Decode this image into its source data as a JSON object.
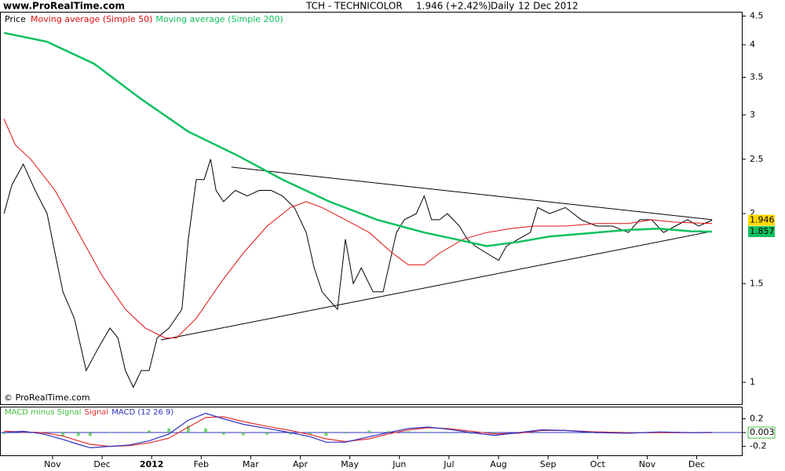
{
  "header": {
    "site": "www.ProRealTime.com",
    "symbol": "TCH - TECHNICOLOR",
    "change": "1.946 (+2.42%)",
    "period": "Daily",
    "date": "12 Dec 2012"
  },
  "chart_data": [
    {
      "type": "line",
      "log_scale": true,
      "copyright": "© ProRealTime.com",
      "legend_prefix": "Price",
      "xlim": [
        -1.06,
        13.91
      ],
      "xticks": [
        {
          "value": 0,
          "label": "Nov"
        },
        {
          "value": 1,
          "label": "Dec"
        },
        {
          "value": 2,
          "label": "2012"
        },
        {
          "value": 3,
          "label": "Feb"
        },
        {
          "value": 4,
          "label": "Mar"
        },
        {
          "value": 5,
          "label": "Apr"
        },
        {
          "value": 6,
          "label": "May"
        },
        {
          "value": 7,
          "label": "Jun"
        },
        {
          "value": 8,
          "label": "Jul"
        },
        {
          "value": 9,
          "label": "Aug"
        },
        {
          "value": 10,
          "label": "Sep"
        },
        {
          "value": 11,
          "label": "Oct"
        },
        {
          "value": 12,
          "label": "Nov"
        },
        {
          "value": 13,
          "label": "Dec"
        }
      ],
      "ylim": [
        0.914,
        4.58
      ],
      "yticks": [
        1,
        1.5,
        2,
        2.5,
        3,
        3.5,
        4,
        4.5
      ],
      "series": [
        {
          "name": "Price",
          "color": "#000000",
          "width": 1,
          "x": [
            -0.98,
            -0.82,
            -0.59,
            -0.35,
            -0.11,
            0.05,
            0.21,
            0.44,
            0.68,
            0.92,
            1.16,
            1.32,
            1.47,
            1.63,
            1.79,
            1.95,
            2.11,
            2.35,
            2.61,
            2.74,
            2.9,
            3.06,
            3.19,
            3.3,
            3.45,
            3.69,
            3.93,
            4.17,
            4.41,
            4.64,
            4.88,
            5.12,
            5.28,
            5.44,
            5.59,
            5.75,
            5.91,
            6.07,
            6.23,
            6.47,
            6.67,
            6.78,
            6.94,
            7.1,
            7.34,
            7.5,
            7.65,
            7.81,
            7.97,
            8.21,
            8.37,
            8.53,
            8.76,
            9.0,
            9.16,
            9.4,
            9.64,
            9.79,
            10.03,
            10.35,
            10.67,
            10.98,
            11.3,
            11.62,
            11.85,
            12.09,
            12.33,
            12.57,
            12.81,
            13.04,
            13.31
          ],
          "values": [
            2.0,
            2.25,
            2.45,
            2.2,
            2.0,
            1.7,
            1.45,
            1.3,
            1.05,
            1.15,
            1.25,
            1.2,
            1.05,
            0.98,
            1.05,
            1.05,
            1.2,
            1.25,
            1.35,
            1.8,
            2.3,
            2.3,
            2.5,
            2.2,
            2.1,
            2.2,
            2.15,
            2.2,
            2.2,
            2.15,
            2.05,
            1.85,
            1.6,
            1.45,
            1.4,
            1.35,
            1.8,
            1.5,
            1.6,
            1.45,
            1.45,
            1.6,
            1.85,
            1.95,
            2.0,
            2.15,
            1.95,
            1.95,
            2.0,
            1.9,
            1.8,
            1.75,
            1.7,
            1.65,
            1.75,
            1.8,
            1.85,
            2.05,
            2.0,
            2.05,
            1.95,
            1.9,
            1.9,
            1.85,
            1.95,
            1.95,
            1.85,
            1.9,
            1.95,
            1.9,
            1.946
          ]
        },
        {
          "name": "Moving average (Simple 50)",
          "color": "#e01010",
          "width": 1,
          "x": [
            -0.98,
            -0.75,
            -0.44,
            0.05,
            0.52,
            1.0,
            1.47,
            1.87,
            2.27,
            2.5,
            2.9,
            3.38,
            3.85,
            4.33,
            4.8,
            5.12,
            5.44,
            5.91,
            6.39,
            6.86,
            7.18,
            7.5,
            7.81,
            8.29,
            8.76,
            9.24,
            9.71,
            10.35,
            10.98,
            11.62,
            12.09,
            12.57,
            13.31
          ],
          "values": [
            2.95,
            2.65,
            2.5,
            2.2,
            1.85,
            1.55,
            1.35,
            1.25,
            1.2,
            1.2,
            1.3,
            1.5,
            1.7,
            1.9,
            2.05,
            2.1,
            2.05,
            1.95,
            1.85,
            1.7,
            1.62,
            1.62,
            1.7,
            1.8,
            1.85,
            1.88,
            1.9,
            1.9,
            1.92,
            1.92,
            1.95,
            1.93,
            1.92
          ]
        },
        {
          "name": "Moving average (Simple 200)",
          "color": "#10c060",
          "width": 2.5,
          "x": [
            -0.98,
            -0.11,
            0.84,
            1.79,
            2.74,
            3.69,
            4.64,
            5.59,
            6.55,
            7.5,
            8.13,
            8.76,
            9.4,
            10.03,
            10.98,
            11.62,
            12.25,
            12.88,
            13.31
          ],
          "values": [
            4.2,
            4.05,
            3.7,
            3.2,
            2.8,
            2.55,
            2.3,
            2.1,
            1.95,
            1.85,
            1.8,
            1.75,
            1.78,
            1.82,
            1.85,
            1.87,
            1.88,
            1.86,
            1.857
          ]
        }
      ],
      "trendlines": [
        {
          "x": [
            3.61,
            13.31
          ],
          "values": [
            2.42,
            1.95
          ]
        },
        {
          "x": [
            2.19,
            13.31
          ],
          "values": [
            1.19,
            1.86
          ]
        }
      ],
      "last_values": [
        {
          "value": 1.946,
          "color": "#ffd800"
        },
        {
          "value": 1.857,
          "color": "#10c060"
        }
      ]
    },
    {
      "type": "line",
      "ylim": [
        -0.33,
        0.377
      ],
      "yticks": [
        0.2,
        0,
        -0.2
      ],
      "zero_line_color": "#3030c0",
      "x": [
        -0.98,
        -0.59,
        -0.19,
        0.21,
        0.52,
        0.76,
        1.16,
        1.55,
        1.95,
        2.35,
        2.74,
        3.09,
        3.45,
        3.85,
        4.33,
        4.8,
        5.2,
        5.52,
        5.91,
        6.39,
        6.78,
        7.18,
        7.58,
        7.97,
        8.45,
        8.92,
        9.4,
        9.87,
        10.35,
        10.98,
        11.62,
        12.25,
        12.88,
        13.31
      ],
      "series": [
        {
          "name": "MACD minus Signal",
          "color": "#40c040",
          "style": "bar",
          "values": [
            -0.02,
            0.01,
            -0.02,
            -0.05,
            -0.05,
            -0.05,
            0,
            0.01,
            0.03,
            0.06,
            0.1,
            0.06,
            -0.03,
            -0.04,
            -0.03,
            -0.03,
            -0.03,
            -0.05,
            -0.01,
            0.03,
            0.02,
            0.02,
            0.01,
            -0.01,
            -0.02,
            -0.02,
            0.01,
            0.01,
            0,
            -0.01,
            -0.01,
            0.01,
            0,
            0.003
          ]
        },
        {
          "name": "Signal",
          "color": "#e03030",
          "style": "line",
          "values": [
            0.02,
            0.01,
            0.0,
            -0.05,
            -0.12,
            -0.17,
            -0.2,
            -0.19,
            -0.15,
            -0.08,
            0.08,
            0.22,
            0.23,
            0.16,
            0.09,
            0.03,
            -0.03,
            -0.09,
            -0.13,
            -0.09,
            -0.02,
            0.04,
            0.07,
            0.06,
            0.02,
            -0.02,
            -0.01,
            0.03,
            0.03,
            0.01,
            0.0,
            0.0,
            0.0,
            0.0
          ]
        },
        {
          "name": "MACD (12 26 9)",
          "color": "#3030c0",
          "style": "line",
          "values": [
            0.0,
            0.02,
            -0.02,
            -0.1,
            -0.17,
            -0.22,
            -0.2,
            -0.18,
            -0.12,
            -0.02,
            0.18,
            0.28,
            0.2,
            0.12,
            0.06,
            0.0,
            -0.06,
            -0.14,
            -0.14,
            -0.06,
            0.0,
            0.06,
            0.08,
            0.05,
            0.0,
            -0.04,
            0.0,
            0.04,
            0.03,
            0.0,
            -0.01,
            0.01,
            0.0,
            0.003
          ]
        }
      ]
    }
  ]
}
